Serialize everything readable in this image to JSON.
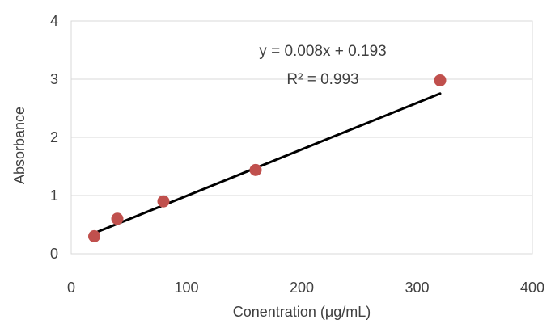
{
  "chart_data": {
    "type": "scatter",
    "xlabel": "Conentration (μg/mL)",
    "ylabel": "Absorbance",
    "xlim": [
      0,
      400
    ],
    "ylim": [
      0,
      4
    ],
    "x_ticks": [
      "0",
      "100",
      "200",
      "300",
      "400"
    ],
    "y_ticks": [
      "0",
      "1",
      "2",
      "3",
      "4"
    ],
    "grid": "horizontal",
    "series": [
      {
        "x": [
          20,
          40,
          80,
          160,
          320
        ],
        "y": [
          0.3,
          0.6,
          0.9,
          1.44,
          2.98
        ],
        "color": "#c0504d"
      }
    ],
    "trendline": {
      "equation": "y = 0.008x + 0.193",
      "r_squared": "R² = 0.993",
      "slope": 0.008,
      "intercept": 0.193,
      "x_range": [
        20,
        320
      ],
      "color": "#000000"
    }
  }
}
